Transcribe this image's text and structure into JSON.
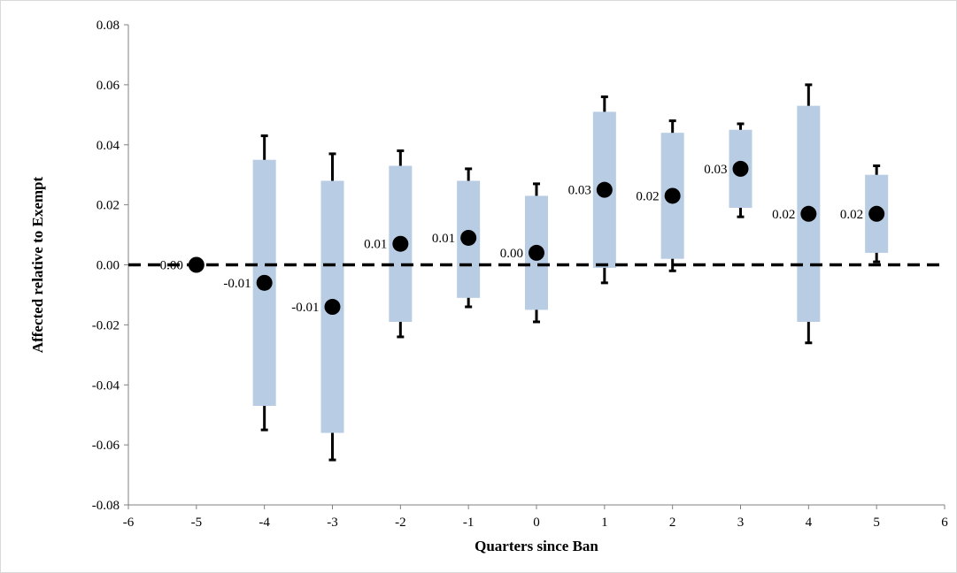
{
  "chart_data": {
    "type": "scatter",
    "title": "",
    "xlabel": "Quarters since Ban",
    "ylabel": "Affected relative to Exempt",
    "xlim": [
      -6,
      6
    ],
    "ylim": [
      -0.08,
      0.08
    ],
    "x_ticks": [
      -6,
      -5,
      -4,
      -3,
      -2,
      -1,
      0,
      1,
      2,
      3,
      4,
      5,
      6
    ],
    "y_ticks": [
      -0.08,
      -0.06,
      -0.04,
      -0.02,
      0.0,
      0.02,
      0.04,
      0.06,
      0.08
    ],
    "y_tick_labels": [
      "-0.08",
      "-0.06",
      "-0.04",
      "-0.02",
      "0.00",
      "0.02",
      "0.04",
      "0.06",
      "0.08"
    ],
    "x_tick_labels": [
      "-6",
      "-5",
      "-4",
      "-3",
      "-2",
      "-1",
      "0",
      "1",
      "2",
      "3",
      "4",
      "5",
      "6"
    ],
    "grid": false,
    "reference_line": {
      "y": 0,
      "style": "dashed",
      "color": "#000000"
    },
    "colors": {
      "point": "#000000",
      "box": "#b8cce4",
      "whisker": "#000000"
    },
    "points": [
      {
        "x": -5,
        "y": 0.0,
        "label": "0.00",
        "box": null,
        "whisker": null
      },
      {
        "x": -4,
        "y": -0.006,
        "label": "-0.01",
        "box": [
          -0.047,
          0.035
        ],
        "whisker": [
          -0.055,
          0.043
        ]
      },
      {
        "x": -3,
        "y": -0.014,
        "label": "-0.01",
        "box": [
          -0.056,
          0.028
        ],
        "whisker": [
          -0.065,
          0.037
        ]
      },
      {
        "x": -2,
        "y": 0.007,
        "label": "0.01",
        "box": [
          -0.019,
          0.033
        ],
        "whisker": [
          -0.024,
          0.038
        ]
      },
      {
        "x": -1,
        "y": 0.009,
        "label": "0.01",
        "box": [
          -0.011,
          0.028
        ],
        "whisker": [
          -0.014,
          0.032
        ]
      },
      {
        "x": 0,
        "y": 0.004,
        "label": "0.00",
        "box": [
          -0.015,
          0.023
        ],
        "whisker": [
          -0.019,
          0.027
        ]
      },
      {
        "x": 1,
        "y": 0.025,
        "label": "0.03",
        "box": [
          -0.001,
          0.051
        ],
        "whisker": [
          -0.006,
          0.056
        ]
      },
      {
        "x": 2,
        "y": 0.023,
        "label": "0.02",
        "box": [
          0.002,
          0.044
        ],
        "whisker": [
          -0.002,
          0.048
        ]
      },
      {
        "x": 3,
        "y": 0.032,
        "label": "0.03",
        "box": [
          0.019,
          0.045
        ],
        "whisker": [
          0.016,
          0.047
        ]
      },
      {
        "x": 4,
        "y": 0.017,
        "label": "0.02",
        "box": [
          -0.019,
          0.053
        ],
        "whisker": [
          -0.026,
          0.06
        ]
      },
      {
        "x": 5,
        "y": 0.017,
        "label": "0.02",
        "box": [
          0.004,
          0.03
        ],
        "whisker": [
          0.001,
          0.033
        ]
      }
    ]
  }
}
